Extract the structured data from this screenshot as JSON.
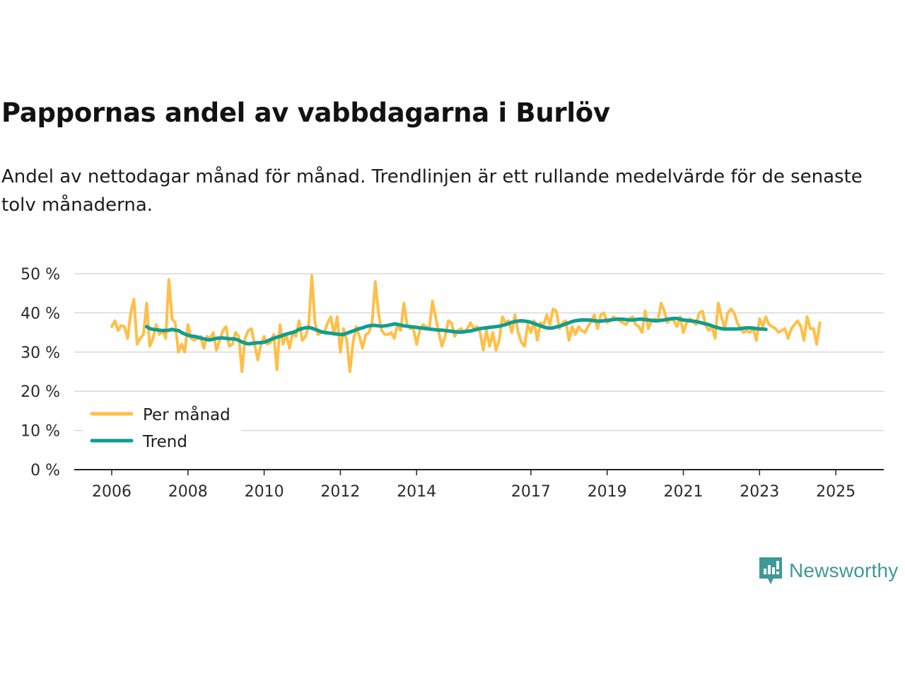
{
  "title": "Pappornas andel av vabbdagarna i Burlöv",
  "subtitle": "Andel av nettodagar månad för månad. Trendlinjen är ett rullande medelvärde för de senaste tolv månaderna.",
  "brand": "Newsworthy",
  "colors": {
    "monthly": "#ffbf47",
    "trend": "#0f9d92",
    "grid": "#d9d9d9",
    "axis": "#222222",
    "brand": "#3d9a96"
  },
  "chart_data": {
    "type": "line",
    "title": "Pappornas andel av vabbdagarna i Burlöv",
    "xlabel": "",
    "ylabel": "",
    "xlim": [
      2006,
      2025.7
    ],
    "ylim": [
      0,
      50
    ],
    "x_ticks": [
      2006,
      2008,
      2010,
      2012,
      2014,
      2017,
      2019,
      2021,
      2023,
      2025
    ],
    "x_tick_labels": [
      "2006",
      "2008",
      "2010",
      "2012",
      "2014",
      "2017",
      "2019",
      "2021",
      "2023",
      "2025"
    ],
    "y_ticks": [
      0,
      10,
      20,
      30,
      40,
      50
    ],
    "y_tick_labels": [
      "0 %",
      "10 %",
      "20 %",
      "30 %",
      "40 %",
      "50 %"
    ],
    "grid": true,
    "legend": {
      "position": "bottom-left",
      "entries": [
        "Per månad",
        "Trend"
      ]
    },
    "series": [
      {
        "name": "Per månad",
        "start": 2006.0,
        "step": 0.08333,
        "values": [
          36.5,
          38,
          35.5,
          36.8,
          36.5,
          33.5,
          40,
          43.5,
          32,
          33.5,
          34.5,
          42.5,
          31.5,
          33.5,
          37,
          34.5,
          35.5,
          33.5,
          48.5,
          38.5,
          37.5,
          30,
          32,
          30,
          37,
          33.5,
          33,
          33.5,
          34,
          31,
          34,
          33.5,
          35,
          30.5,
          33,
          35.5,
          36.5,
          31.5,
          32,
          35,
          34,
          25,
          33.5,
          35.5,
          36,
          32,
          28,
          32,
          34,
          32,
          32.5,
          34.5,
          25.5,
          37,
          32,
          34.5,
          31,
          35,
          34,
          38,
          33,
          34,
          36.5,
          49.5,
          37.5,
          34.5,
          35,
          35,
          37.5,
          39,
          34.5,
          39,
          30,
          36,
          33,
          25,
          32.5,
          36.5,
          34,
          31,
          34.5,
          35,
          37.5,
          48,
          40,
          35.5,
          34.5,
          34.5,
          35,
          33.5,
          37,
          35.5,
          42.5,
          37,
          36,
          36,
          32,
          35.5,
          37,
          36.5,
          36,
          43,
          39,
          35,
          31.5,
          34,
          38,
          37.5,
          34,
          35.5,
          36,
          35,
          36,
          37.5,
          36,
          36.5,
          35,
          30.5,
          35.5,
          31.5,
          35,
          30.5,
          33,
          39,
          37.5,
          38,
          35,
          39.5,
          35,
          32.5,
          31.5,
          37,
          35,
          38,
          33,
          37.5,
          37,
          39.5,
          37,
          41,
          40.5,
          36,
          37.5,
          38,
          33,
          36.5,
          34.5,
          36.5,
          35.5,
          35,
          36.5,
          38,
          39.5,
          36,
          39.5,
          40,
          37.5,
          38,
          39,
          38.5,
          38,
          37.5,
          37,
          38.5,
          39,
          37,
          36.5,
          35,
          40.5,
          36,
          38,
          38.5,
          38,
          42.5,
          40.5,
          37.5,
          38.5,
          38,
          36.5,
          39,
          35,
          37.5,
          38.5,
          38,
          37,
          40,
          40.5,
          37,
          35.5,
          36.5,
          33.5,
          42.5,
          39,
          36,
          40,
          41,
          40,
          37.5,
          36,
          35,
          35.5,
          35,
          36,
          33,
          38.5,
          36.5,
          39,
          37,
          36.5,
          36,
          35,
          35.5,
          36,
          33.5,
          36,
          37,
          38,
          36.5,
          33,
          39,
          36,
          36,
          32,
          37.5
        ]
      },
      {
        "name": "Trend",
        "start": 2006.9167,
        "step": 0.08333,
        "values": [
          36.5,
          36,
          35.8,
          35.7,
          35.6,
          35.5,
          35.5,
          35.6,
          35.8,
          35.6,
          35.5,
          35,
          34.6,
          34.3,
          34.1,
          34,
          33.8,
          33.6,
          33.4,
          33.2,
          33.1,
          33.3,
          33.5,
          33.6,
          33.6,
          33.5,
          33.4,
          33.4,
          33.3,
          33,
          32.6,
          32.3,
          32.1,
          32.2,
          32.3,
          32.4,
          32.4,
          32.5,
          32.8,
          33.2,
          33.5,
          33.8,
          34,
          34.3,
          34.6,
          34.8,
          35,
          35.3,
          35.8,
          36,
          36.2,
          36.3,
          36.1,
          35.8,
          35.5,
          35.2,
          35,
          34.9,
          34.8,
          34.7,
          34.6,
          34.5,
          34.5,
          34.8,
          35.1,
          35.4,
          35.7,
          36,
          36.2,
          36.5,
          36.7,
          36.8,
          36.8,
          36.7,
          36.6,
          36.7,
          36.8,
          37,
          37.2,
          37.1,
          36.9,
          36.7,
          36.6,
          36.5,
          36.4,
          36.3,
          36.2,
          36.1,
          36,
          35.9,
          35.8,
          35.7,
          35.6,
          35.6,
          35.5,
          35.4,
          35.3,
          35.2,
          35.1,
          35.1,
          35.2,
          35.3,
          35.4,
          35.6,
          35.8,
          36,
          36.1,
          36.2,
          36.3,
          36.4,
          36.5,
          36.6,
          36.8,
          37,
          37.3,
          37.6,
          37.8,
          37.9,
          38,
          37.9,
          37.8,
          37.6,
          37.3,
          37,
          36.7,
          36.4,
          36.2,
          36.1,
          36.2,
          36.4,
          36.6,
          36.9,
          37.2,
          37.5,
          37.8,
          38,
          38.1,
          38.2,
          38.2,
          38.2,
          38.1,
          38,
          37.9,
          37.9,
          38,
          38.1,
          38.2,
          38.3,
          38.4,
          38.4,
          38.4,
          38.3,
          38.2,
          38.2,
          38.3,
          38.4,
          38.4,
          38.3,
          38.2,
          38.1,
          38,
          38,
          38.1,
          38.2,
          38.4,
          38.5,
          38.6,
          38.6,
          38.4,
          38.2,
          38.1,
          38,
          37.9,
          37.8,
          37.6,
          37.4,
          37.2,
          37,
          36.7,
          36.4,
          36.2,
          36,
          35.9,
          35.9,
          35.9,
          35.9,
          35.9,
          36,
          36.1,
          36.2,
          36.2,
          36.1,
          36,
          35.9,
          35.9,
          35.8
        ]
      }
    ]
  }
}
